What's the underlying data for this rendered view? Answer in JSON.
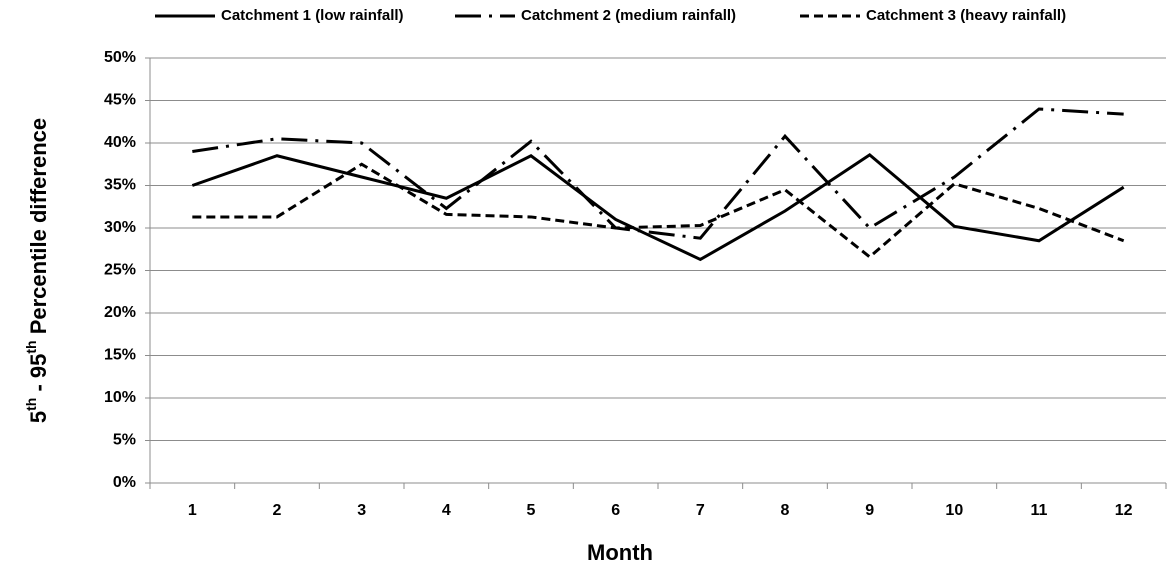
{
  "chart_data": {
    "type": "line",
    "xlabel": "Month",
    "ylabel": [
      "5",
      "th",
      " - 95",
      "th",
      " Percentile difference"
    ],
    "categories": [
      "1",
      "2",
      "3",
      "4",
      "5",
      "6",
      "7",
      "8",
      "9",
      "10",
      "11",
      "12"
    ],
    "series": [
      {
        "name": "Catchment 1 (low rainfall)",
        "color": "#000000",
        "dash": "solid",
        "values": [
          35,
          38.5,
          36,
          33.5,
          38.5,
          31,
          26.3,
          32,
          38.6,
          30.2,
          28.5,
          34.8
        ]
      },
      {
        "name": "Catchment 2 (medium rainfall)",
        "color": "#000000",
        "dash": "dashdot",
        "values": [
          39,
          40.5,
          40,
          32.3,
          40.2,
          30,
          28.8,
          40.8,
          30,
          36,
          44,
          43.4
        ]
      },
      {
        "name": "Catchment 3 (heavy rainfall)",
        "color": "#000000",
        "dash": "dash",
        "values": [
          31.3,
          31.3,
          37.5,
          31.6,
          31.3,
          30,
          30.3,
          34.5,
          26.6,
          35.2,
          32.3,
          28.5
        ]
      }
    ],
    "ylim": [
      0,
      50
    ],
    "yticks": [
      {
        "value": 0,
        "label": "0%"
      },
      {
        "value": 5,
        "label": "5%"
      },
      {
        "value": 10,
        "label": "10%"
      },
      {
        "value": 15,
        "label": "15%"
      },
      {
        "value": 20,
        "label": "20%"
      },
      {
        "value": 25,
        "label": "25%"
      },
      {
        "value": 30,
        "label": "30%"
      },
      {
        "value": 35,
        "label": "35%"
      },
      {
        "value": 40,
        "label": "40%"
      },
      {
        "value": 45,
        "label": "45%"
      },
      {
        "value": 50,
        "label": "50%"
      }
    ],
    "grid": true,
    "legend": "top"
  }
}
